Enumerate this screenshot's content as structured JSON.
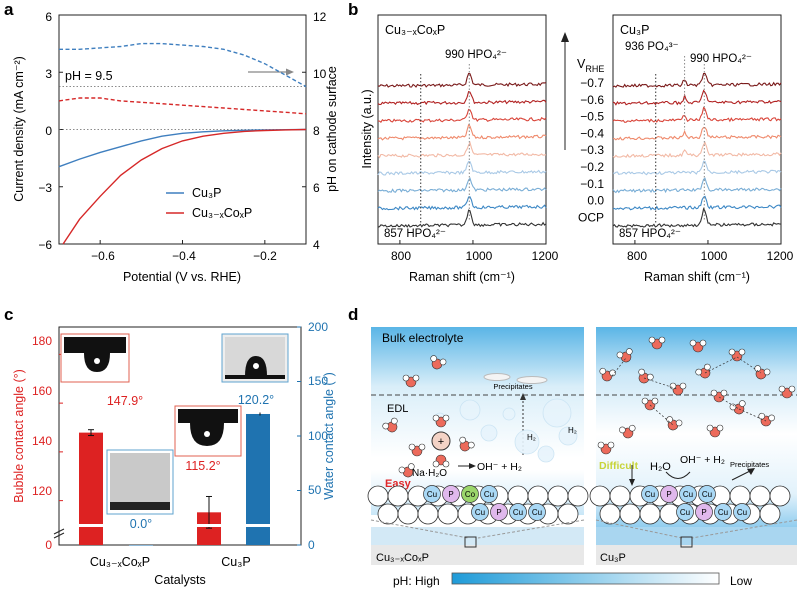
{
  "panel_letters": {
    "a": "a",
    "b": "b",
    "c": "c",
    "d": "d"
  },
  "panel_a": {
    "ylabel_left": "Current density (mA cm⁻²)",
    "ylabel_right": "pH on cathode surface",
    "xlabel": "Potential (V vs. RHE)",
    "annotation": "pH = 9.5",
    "legend": [
      "Cu₃P",
      "Cu₃₋ₓCoₓP"
    ],
    "colors": {
      "cu3p": "#3f7fbf",
      "cucop": "#d62828"
    },
    "yticks_left": [
      "6",
      "3",
      "0",
      "−3",
      "−6"
    ],
    "yticks_right": [
      "12",
      "10",
      "8",
      "6",
      "4"
    ],
    "xticks": [
      "−0.6",
      "−0.4",
      "−0.2"
    ]
  },
  "panel_b": {
    "left_title": "Cu₃₋ₓCoₓP",
    "right_title": "Cu₃P",
    "ylabel": "Intensity (a.u.)",
    "xlabel": "Raman shift (cm⁻¹)",
    "peak_990": "990 HPO₄²⁻",
    "peak_936": "936 PO₄³⁻",
    "peak_857": "857 HPO₄²⁻",
    "vrhe_label": "V",
    "vrhe_sub": "RHE",
    "potentials": [
      "−0.7",
      "−0.6",
      "−0.5",
      "−0.4",
      "−0.3",
      "−0.2",
      "−0.1",
      "0.0",
      "OCP"
    ],
    "xticks": [
      "800",
      "1000",
      "1200"
    ],
    "trace_colors": [
      "#7a1a1a",
      "#b22222",
      "#d9453a",
      "#ef8a6c",
      "#f2b9a5",
      "#a9c9e6",
      "#7aaed6",
      "#3d88c5",
      "#333333"
    ]
  },
  "panel_c": {
    "ylabel_left": "Bubble contact angle (°)",
    "ylabel_right": "Water contact angle (°)",
    "xlabel": "Catalysts",
    "categories": [
      "Cu₃₋ₓCoₓP",
      "Cu₃P"
    ],
    "bubble_labels": [
      "147.9°",
      "115.2°"
    ],
    "water_labels": [
      "0.0°",
      "120.2°"
    ],
    "yticks_left": [
      "180",
      "160",
      "140",
      "120",
      "0"
    ],
    "yticks_right": [
      "200",
      "150",
      "100",
      "50",
      "0"
    ],
    "colors": {
      "bubble": "#dd2222",
      "water": "#1f73b0"
    }
  },
  "panel_d": {
    "bulk": "Bulk electrolyte",
    "edl": "EDL",
    "precipitates": "Precipitates",
    "h2": "H₂",
    "na_h2o": "Na·H₂O",
    "reaction": "OH⁻ + H₂",
    "easy": "Easy",
    "difficult": "Difficult",
    "h2o": "H₂O",
    "left_cat": "Cu₃₋ₓCoₓP",
    "right_cat": "Cu₃P",
    "ph_high": "pH: High",
    "ph_low": "Low",
    "atoms_left_top": [
      "Cu",
      "P",
      "Co",
      "Cu"
    ],
    "atoms_left_bottom": [
      "Cu",
      "P",
      "Cu",
      "Cu"
    ],
    "atoms_right_top": [
      "Cu",
      "P",
      "Cu",
      "Cu"
    ],
    "atoms_right_bottom": [
      "Cu",
      "P",
      "Cu",
      "Cu"
    ]
  },
  "chart_data": [
    {
      "type": "line",
      "title": "",
      "xlabel": "Potential (V vs. RHE)",
      "ylabel": "Current density (mA cm⁻²)",
      "y2label": "pH on cathode surface",
      "xlim": [
        -0.7,
        -0.1
      ],
      "ylim": [
        -6,
        6
      ],
      "y2lim": [
        4,
        12
      ],
      "series": [
        {
          "name": "Cu₃P",
          "axis": "left",
          "x": [
            -0.7,
            -0.65,
            -0.6,
            -0.55,
            -0.5,
            -0.45,
            -0.4,
            -0.35,
            -0.3,
            -0.25,
            -0.2,
            -0.15,
            -0.1
          ],
          "y": [
            -1.95,
            -1.55,
            -1.2,
            -0.9,
            -0.6,
            -0.35,
            -0.2,
            -0.12,
            -0.07,
            -0.04,
            -0.02,
            -0.01,
            0
          ]
        },
        {
          "name": "Cu₃₋ₓCoₓP",
          "axis": "left",
          "x": [
            -0.69,
            -0.65,
            -0.6,
            -0.55,
            -0.5,
            -0.45,
            -0.4,
            -0.35,
            -0.3,
            -0.25,
            -0.2,
            -0.15,
            -0.1
          ],
          "y": [
            -6.0,
            -4.7,
            -3.5,
            -2.4,
            -1.6,
            -1.0,
            -0.6,
            -0.35,
            -0.2,
            -0.1,
            -0.05,
            -0.02,
            0
          ]
        },
        {
          "name": "Cu₃P (pH)",
          "axis": "right",
          "style": "dashed",
          "x": [
            -0.7,
            -0.65,
            -0.6,
            -0.55,
            -0.5,
            -0.45,
            -0.4,
            -0.35,
            -0.3,
            -0.25,
            -0.2,
            -0.15,
            -0.1
          ],
          "y": [
            10.8,
            10.8,
            10.85,
            10.9,
            11.0,
            11.0,
            10.95,
            10.9,
            10.8,
            10.6,
            10.3,
            9.9,
            9.5
          ]
        },
        {
          "name": "Cu₃₋ₓCoₓP (pH)",
          "axis": "right",
          "style": "dashed",
          "x": [
            -0.7,
            -0.65,
            -0.6,
            -0.55,
            -0.5,
            -0.45,
            -0.4,
            -0.35,
            -0.3,
            -0.25,
            -0.2,
            -0.15,
            -0.1
          ],
          "y": [
            9.0,
            9.1,
            9.1,
            9.0,
            8.95,
            8.9,
            8.85,
            8.8,
            8.75,
            8.7,
            8.65,
            8.6,
            8.55
          ]
        }
      ]
    },
    {
      "type": "bar",
      "title": "",
      "xlabel": "Catalysts",
      "ylabel": "Bubble contact angle (°)",
      "y2label": "Water contact angle (°)",
      "categories": [
        "Cu₃₋ₓCoₓP",
        "Cu₃P"
      ],
      "series": [
        {
          "name": "Bubble contact angle",
          "values": [
            147.9,
            115.2
          ]
        },
        {
          "name": "Water contact angle",
          "values": [
            0.0,
            120.2
          ]
        }
      ],
      "ylim": [
        0,
        190
      ],
      "y2lim": [
        0,
        200
      ]
    }
  ]
}
